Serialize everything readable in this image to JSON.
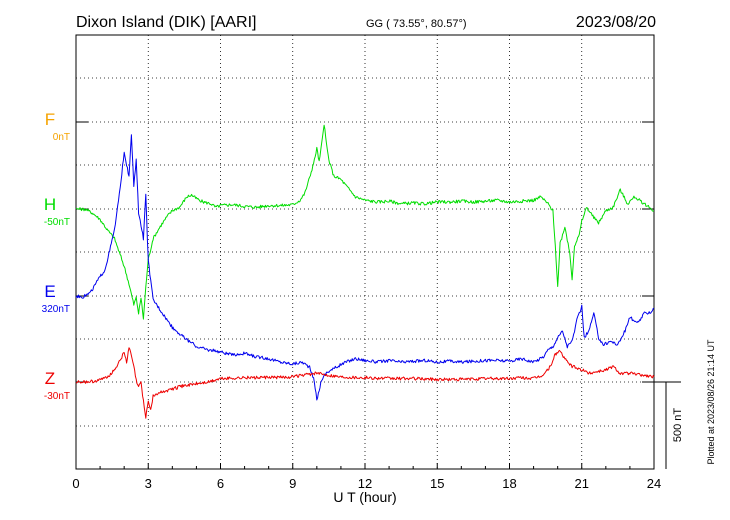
{
  "header": {
    "station": "Dixon Island (DIK)  [AARI]",
    "coords": "GG ( 73.55°,  80.57°)",
    "date": "2023/08/20"
  },
  "side_note": "Plotted at 2023/08/26 21:14 UT",
  "chart_data": {
    "type": "line",
    "xlabel": "U T (hour)",
    "xlim": [
      0,
      24
    ],
    "xticks": [
      0,
      3,
      6,
      9,
      12,
      15,
      18,
      21,
      24
    ],
    "grid": true,
    "scale_bar": {
      "label": "500 nT",
      "value_nT": 500
    },
    "series": [
      {
        "name": "F",
        "baseline_label": "0nT",
        "color": "#f5a300",
        "visible": false,
        "points": []
      },
      {
        "name": "H",
        "baseline_label": "-50nT",
        "color": "#00dd00",
        "points": [
          [
            0.0,
            -50
          ],
          [
            0.4,
            -52
          ],
          [
            0.7,
            -75
          ],
          [
            1.0,
            -110
          ],
          [
            1.3,
            -170
          ],
          [
            1.6,
            -220
          ],
          [
            1.8,
            -300
          ],
          [
            2.0,
            -380
          ],
          [
            2.2,
            -480
          ],
          [
            2.4,
            -600
          ],
          [
            2.5,
            -560
          ],
          [
            2.6,
            -650
          ],
          [
            2.7,
            -560
          ],
          [
            2.8,
            -680
          ],
          [
            2.9,
            -500
          ],
          [
            3.0,
            -340
          ],
          [
            3.2,
            -220
          ],
          [
            3.5,
            -150
          ],
          [
            3.8,
            -90
          ],
          [
            4.0,
            -60
          ],
          [
            4.3,
            -40
          ],
          [
            4.6,
            20
          ],
          [
            4.8,
            30
          ],
          [
            5.0,
            10
          ],
          [
            5.3,
            -10
          ],
          [
            5.6,
            -20
          ],
          [
            5.8,
            -40
          ],
          [
            6.0,
            -30
          ],
          [
            6.5,
            -25
          ],
          [
            7.0,
            -35
          ],
          [
            7.5,
            -40
          ],
          [
            8.0,
            -30
          ],
          [
            8.5,
            -30
          ],
          [
            9.0,
            -25
          ],
          [
            9.3,
            0
          ],
          [
            9.5,
            40
          ],
          [
            9.7,
            130
          ],
          [
            9.9,
            230
          ],
          [
            10.0,
            300
          ],
          [
            10.1,
            220
          ],
          [
            10.2,
            320
          ],
          [
            10.3,
            440
          ],
          [
            10.4,
            320
          ],
          [
            10.5,
            230
          ],
          [
            10.7,
            140
          ],
          [
            11.0,
            120
          ],
          [
            11.3,
            70
          ],
          [
            11.6,
            20
          ],
          [
            12.0,
            0
          ],
          [
            12.5,
            -10
          ],
          [
            13.0,
            -5
          ],
          [
            13.5,
            -20
          ],
          [
            14.0,
            -15
          ],
          [
            14.5,
            -20
          ],
          [
            15.0,
            -10
          ],
          [
            15.5,
            -10
          ],
          [
            16.0,
            -5
          ],
          [
            16.5,
            -10
          ],
          [
            17.0,
            -5
          ],
          [
            17.5,
            0
          ],
          [
            18.0,
            -10
          ],
          [
            18.5,
            -5
          ],
          [
            19.0,
            0
          ],
          [
            19.3,
            20
          ],
          [
            19.6,
            -20
          ],
          [
            19.8,
            -60
          ],
          [
            19.9,
            -260
          ],
          [
            20.0,
            -500
          ],
          [
            20.1,
            -250
          ],
          [
            20.3,
            -150
          ],
          [
            20.5,
            -300
          ],
          [
            20.6,
            -450
          ],
          [
            20.7,
            -260
          ],
          [
            20.9,
            -200
          ],
          [
            21.0,
            -120
          ],
          [
            21.2,
            -40
          ],
          [
            21.5,
            -100
          ],
          [
            21.7,
            -130
          ],
          [
            22.0,
            -60
          ],
          [
            22.3,
            -40
          ],
          [
            22.6,
            60
          ],
          [
            22.9,
            -20
          ],
          [
            23.2,
            20
          ],
          [
            23.5,
            -10
          ],
          [
            23.8,
            -40
          ],
          [
            24.0,
            -60
          ]
        ]
      },
      {
        "name": "E",
        "baseline_label": "320nT",
        "color": "#0000ee",
        "points": [
          [
            0.0,
            320
          ],
          [
            0.3,
            315
          ],
          [
            0.6,
            340
          ],
          [
            0.9,
            410
          ],
          [
            1.2,
            470
          ],
          [
            1.4,
            580
          ],
          [
            1.6,
            700
          ],
          [
            1.8,
            900
          ],
          [
            2.0,
            1150
          ],
          [
            2.2,
            1000
          ],
          [
            2.3,
            1250
          ],
          [
            2.4,
            950
          ],
          [
            2.5,
            1100
          ],
          [
            2.6,
            800
          ],
          [
            2.8,
            650
          ],
          [
            2.9,
            900
          ],
          [
            3.0,
            520
          ],
          [
            3.2,
            300
          ],
          [
            3.5,
            240
          ],
          [
            4.0,
            140
          ],
          [
            4.5,
            80
          ],
          [
            5.0,
            30
          ],
          [
            5.5,
            10
          ],
          [
            6.0,
            0
          ],
          [
            6.5,
            -20
          ],
          [
            7.0,
            -10
          ],
          [
            7.5,
            -30
          ],
          [
            8.0,
            -40
          ],
          [
            8.5,
            -60
          ],
          [
            9.0,
            -70
          ],
          [
            9.4,
            -60
          ],
          [
            9.7,
            -90
          ],
          [
            9.9,
            -170
          ],
          [
            10.0,
            -280
          ],
          [
            10.2,
            -160
          ],
          [
            10.4,
            -120
          ],
          [
            10.8,
            -90
          ],
          [
            11.2,
            -60
          ],
          [
            11.6,
            -40
          ],
          [
            12.0,
            -50
          ],
          [
            12.5,
            -60
          ],
          [
            13.0,
            -50
          ],
          [
            13.5,
            -60
          ],
          [
            14.0,
            -55
          ],
          [
            14.5,
            -50
          ],
          [
            15.0,
            -60
          ],
          [
            15.5,
            -55
          ],
          [
            16.0,
            -60
          ],
          [
            16.5,
            -55
          ],
          [
            17.0,
            -50
          ],
          [
            17.5,
            -50
          ],
          [
            18.0,
            -55
          ],
          [
            18.5,
            -40
          ],
          [
            19.0,
            -60
          ],
          [
            19.4,
            -30
          ],
          [
            19.6,
            10
          ],
          [
            19.8,
            30
          ],
          [
            20.0,
            80
          ],
          [
            20.2,
            120
          ],
          [
            20.4,
            30
          ],
          [
            20.6,
            60
          ],
          [
            20.8,
            180
          ],
          [
            21.0,
            260
          ],
          [
            21.1,
            80
          ],
          [
            21.3,
            120
          ],
          [
            21.5,
            220
          ],
          [
            21.7,
            80
          ],
          [
            21.9,
            40
          ],
          [
            22.2,
            60
          ],
          [
            22.5,
            40
          ],
          [
            22.8,
            120
          ],
          [
            23.0,
            200
          ],
          [
            23.3,
            160
          ],
          [
            23.6,
            220
          ],
          [
            23.9,
            230
          ],
          [
            24.0,
            250
          ]
        ]
      },
      {
        "name": "Z",
        "baseline_label": "-30nT",
        "color": "#ee0000",
        "points": [
          [
            0.0,
            -30
          ],
          [
            0.5,
            -30
          ],
          [
            1.0,
            -20
          ],
          [
            1.4,
            10
          ],
          [
            1.6,
            40
          ],
          [
            1.8,
            90
          ],
          [
            2.0,
            140
          ],
          [
            2.1,
            80
          ],
          [
            2.2,
            170
          ],
          [
            2.3,
            120
          ],
          [
            2.4,
            60
          ],
          [
            2.5,
            -20
          ],
          [
            2.6,
            -60
          ],
          [
            2.7,
            -30
          ],
          [
            2.8,
            -140
          ],
          [
            2.9,
            -230
          ],
          [
            3.0,
            -140
          ],
          [
            3.1,
            -190
          ],
          [
            3.2,
            -110
          ],
          [
            3.5,
            -90
          ],
          [
            4.0,
            -70
          ],
          [
            4.5,
            -50
          ],
          [
            5.0,
            -40
          ],
          [
            5.5,
            -30
          ],
          [
            6.0,
            -10
          ],
          [
            7.0,
            -5
          ],
          [
            8.0,
            -5
          ],
          [
            9.0,
            0
          ],
          [
            9.5,
            10
          ],
          [
            10.0,
            20
          ],
          [
            10.5,
            10
          ],
          [
            11.0,
            0
          ],
          [
            12.0,
            -5
          ],
          [
            13.0,
            -10
          ],
          [
            14.0,
            -10
          ],
          [
            15.0,
            -15
          ],
          [
            16.0,
            -15
          ],
          [
            17.0,
            -10
          ],
          [
            18.0,
            -10
          ],
          [
            18.5,
            -5
          ],
          [
            19.0,
            -10
          ],
          [
            19.4,
            10
          ],
          [
            19.7,
            60
          ],
          [
            19.9,
            130
          ],
          [
            20.1,
            150
          ],
          [
            20.3,
            100
          ],
          [
            20.6,
            60
          ],
          [
            21.0,
            40
          ],
          [
            21.3,
            20
          ],
          [
            21.6,
            30
          ],
          [
            22.0,
            40
          ],
          [
            22.3,
            60
          ],
          [
            22.6,
            20
          ],
          [
            23.0,
            20
          ],
          [
            23.5,
            10
          ],
          [
            24.0,
            0
          ]
        ]
      }
    ]
  }
}
